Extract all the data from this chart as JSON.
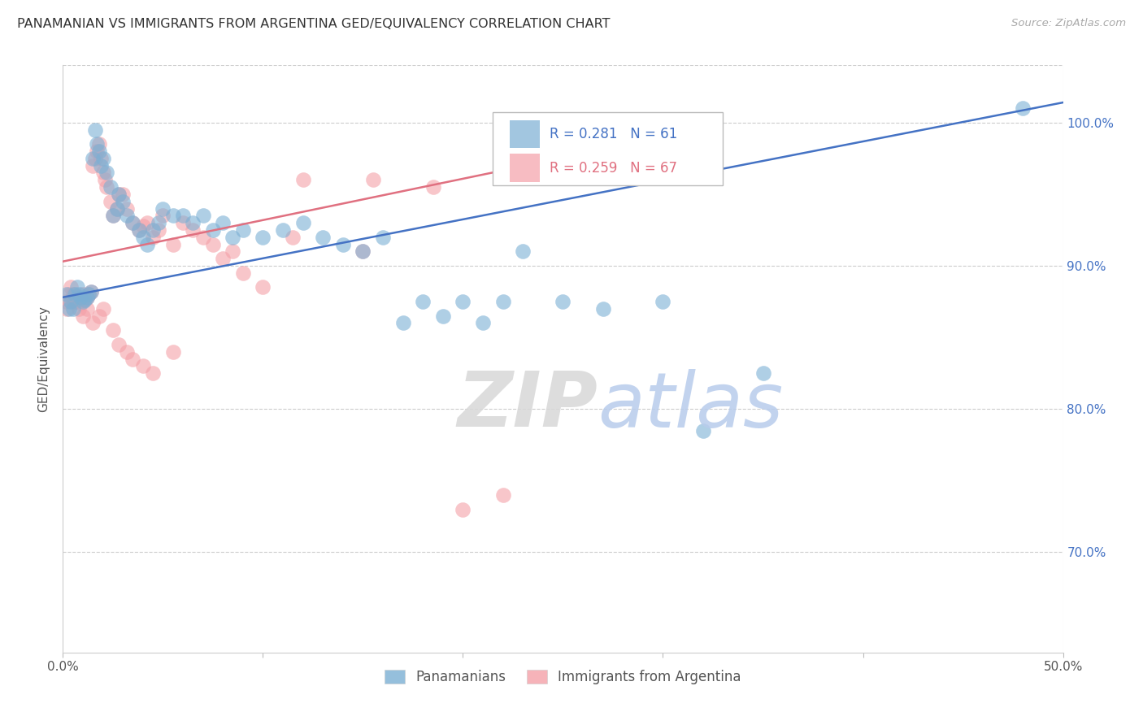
{
  "title": "PANAMANIAN VS IMMIGRANTS FROM ARGENTINA GED/EQUIVALENCY CORRELATION CHART",
  "source": "Source: ZipAtlas.com",
  "ylabel": "GED/Equivalency",
  "xlim": [
    0.0,
    0.5
  ],
  "ylim": [
    0.63,
    1.04
  ],
  "xticks": [
    0.0,
    0.1,
    0.2,
    0.3,
    0.4,
    0.5
  ],
  "xtick_labels": [
    "0.0%",
    "",
    "",
    "",
    "",
    "50.0%"
  ],
  "yticks": [
    0.7,
    0.8,
    0.9,
    1.0
  ],
  "ytick_labels": [
    "70.0%",
    "80.0%",
    "90.0%",
    "100.0%"
  ],
  "blue_color": "#7BAFD4",
  "pink_color": "#F4A0A8",
  "blue_line_color": "#4472C4",
  "pink_line_color": "#E07080",
  "background_color": "#FFFFFF",
  "grid_color": "#CCCCCC",
  "title_color": "#333333",
  "source_color": "#AAAAAA",
  "blue_scatter_x": [
    0.002,
    0.003,
    0.004,
    0.005,
    0.006,
    0.007,
    0.008,
    0.009,
    0.01,
    0.011,
    0.012,
    0.013,
    0.014,
    0.015,
    0.016,
    0.017,
    0.018,
    0.019,
    0.02,
    0.022,
    0.024,
    0.025,
    0.027,
    0.028,
    0.03,
    0.032,
    0.035,
    0.038,
    0.04,
    0.042,
    0.045,
    0.048,
    0.05,
    0.055,
    0.06,
    0.065,
    0.07,
    0.075,
    0.08,
    0.085,
    0.09,
    0.1,
    0.11,
    0.12,
    0.13,
    0.14,
    0.15,
    0.16,
    0.17,
    0.18,
    0.19,
    0.2,
    0.21,
    0.22,
    0.23,
    0.25,
    0.27,
    0.3,
    0.32,
    0.35,
    0.48
  ],
  "blue_scatter_y": [
    0.88,
    0.87,
    0.875,
    0.87,
    0.88,
    0.885,
    0.88,
    0.878,
    0.875,
    0.876,
    0.878,
    0.88,
    0.882,
    0.975,
    0.995,
    0.985,
    0.98,
    0.97,
    0.975,
    0.965,
    0.955,
    0.935,
    0.94,
    0.95,
    0.945,
    0.935,
    0.93,
    0.925,
    0.92,
    0.915,
    0.925,
    0.93,
    0.94,
    0.935,
    0.935,
    0.93,
    0.935,
    0.925,
    0.93,
    0.92,
    0.925,
    0.92,
    0.925,
    0.93,
    0.92,
    0.915,
    0.91,
    0.92,
    0.86,
    0.875,
    0.865,
    0.875,
    0.86,
    0.875,
    0.91,
    0.875,
    0.87,
    0.875,
    0.785,
    0.825,
    1.01
  ],
  "pink_scatter_x": [
    0.002,
    0.003,
    0.004,
    0.005,
    0.006,
    0.007,
    0.008,
    0.009,
    0.01,
    0.011,
    0.012,
    0.013,
    0.014,
    0.015,
    0.016,
    0.017,
    0.018,
    0.019,
    0.02,
    0.021,
    0.022,
    0.024,
    0.025,
    0.027,
    0.028,
    0.03,
    0.032,
    0.035,
    0.038,
    0.04,
    0.042,
    0.045,
    0.048,
    0.05,
    0.055,
    0.06,
    0.065,
    0.07,
    0.075,
    0.08,
    0.085,
    0.09,
    0.1,
    0.115,
    0.12,
    0.15,
    0.155,
    0.185,
    0.22,
    0.002,
    0.004,
    0.006,
    0.008,
    0.01,
    0.012,
    0.015,
    0.018,
    0.02,
    0.025,
    0.028,
    0.032,
    0.035,
    0.04,
    0.045,
    0.055,
    0.2
  ],
  "pink_scatter_y": [
    0.875,
    0.88,
    0.885,
    0.88,
    0.875,
    0.878,
    0.876,
    0.874,
    0.88,
    0.876,
    0.878,
    0.88,
    0.882,
    0.97,
    0.975,
    0.98,
    0.985,
    0.975,
    0.965,
    0.96,
    0.955,
    0.945,
    0.935,
    0.94,
    0.95,
    0.95,
    0.94,
    0.93,
    0.925,
    0.928,
    0.93,
    0.92,
    0.925,
    0.935,
    0.915,
    0.93,
    0.925,
    0.92,
    0.915,
    0.905,
    0.91,
    0.895,
    0.885,
    0.92,
    0.96,
    0.91,
    0.96,
    0.955,
    0.74,
    0.87,
    0.875,
    0.875,
    0.87,
    0.865,
    0.87,
    0.86,
    0.865,
    0.87,
    0.855,
    0.845,
    0.84,
    0.835,
    0.83,
    0.825,
    0.84,
    0.73
  ],
  "blue_line_x": [
    0.0,
    0.5
  ],
  "blue_line_y": [
    0.878,
    1.014
  ],
  "pink_line_x": [
    0.0,
    0.225
  ],
  "pink_line_y": [
    0.903,
    0.968
  ]
}
